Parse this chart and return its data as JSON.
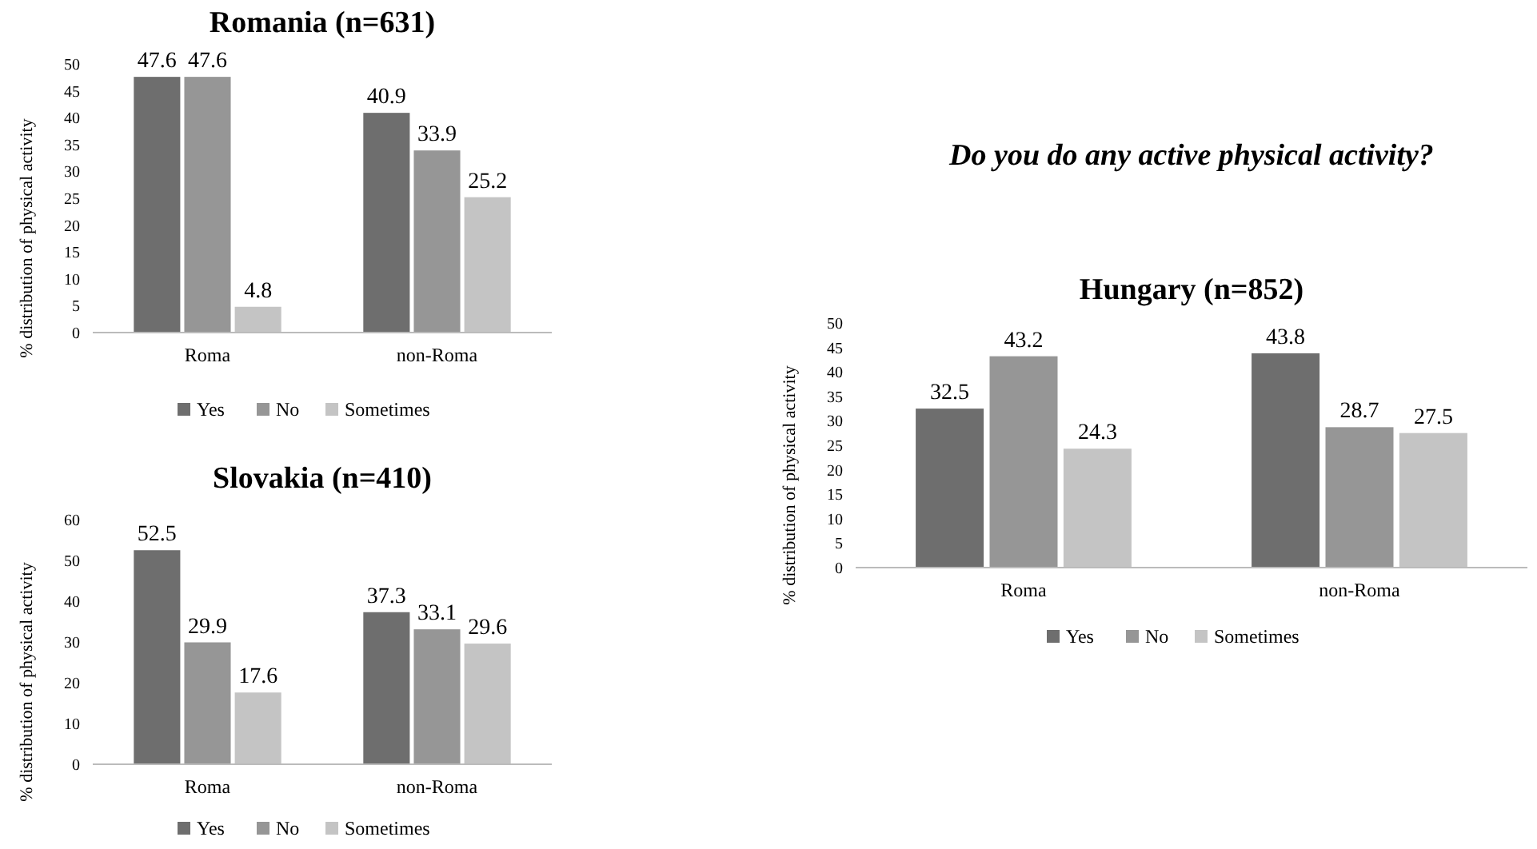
{
  "chart_data": [
    {
      "type": "bar",
      "title": "Romania (n=631)",
      "ylabel": "% distribution of physical activity",
      "categories": [
        "Roma",
        "non-Roma"
      ],
      "ylim": [
        0,
        50
      ],
      "yticks": [
        0,
        5,
        10,
        15,
        20,
        25,
        30,
        35,
        40,
        45,
        50
      ],
      "data_labels": true,
      "legend": "bottom",
      "series": [
        {
          "name": "Yes",
          "color": "#6e6e6e",
          "values": [
            47.6,
            40.9
          ]
        },
        {
          "name": "No",
          "color": "#969696",
          "values": [
            47.6,
            33.9
          ]
        },
        {
          "name": "Sometimes",
          "color": "#c4c4c4",
          "values": [
            4.8,
            25.2
          ]
        }
      ]
    },
    {
      "type": "other",
      "title": "Do you do any active physical activity?"
    },
    {
      "type": "bar",
      "title": "Hungary (n=852)",
      "ylabel": "% distribution of physical activity",
      "categories": [
        "Roma",
        "non-Roma"
      ],
      "ylim": [
        0,
        50
      ],
      "yticks": [
        0,
        5,
        10,
        15,
        20,
        25,
        30,
        35,
        40,
        45,
        50
      ],
      "data_labels": true,
      "legend": "bottom",
      "series": [
        {
          "name": "Yes",
          "color": "#6e6e6e",
          "values": [
            32.5,
            43.8
          ]
        },
        {
          "name": "No",
          "color": "#969696",
          "values": [
            43.2,
            28.7
          ]
        },
        {
          "name": "Sometimes",
          "color": "#c4c4c4",
          "values": [
            24.3,
            27.5
          ]
        }
      ]
    },
    {
      "type": "bar",
      "title": "Slovakia (n=410)",
      "ylabel": "% distribution of physical activity",
      "categories": [
        "Roma",
        "non-Roma"
      ],
      "ylim": [
        0,
        60
      ],
      "yticks": [
        0,
        10,
        20,
        30,
        40,
        50,
        60
      ],
      "data_labels": true,
      "legend": "bottom",
      "series": [
        {
          "name": "Yes",
          "color": "#6e6e6e",
          "values": [
            52.5,
            37.3
          ]
        },
        {
          "name": "No",
          "color": "#969696",
          "values": [
            29.9,
            33.1
          ]
        },
        {
          "name": "Sometimes",
          "color": "#c4c4c4",
          "values": [
            17.6,
            29.6
          ]
        }
      ]
    }
  ]
}
